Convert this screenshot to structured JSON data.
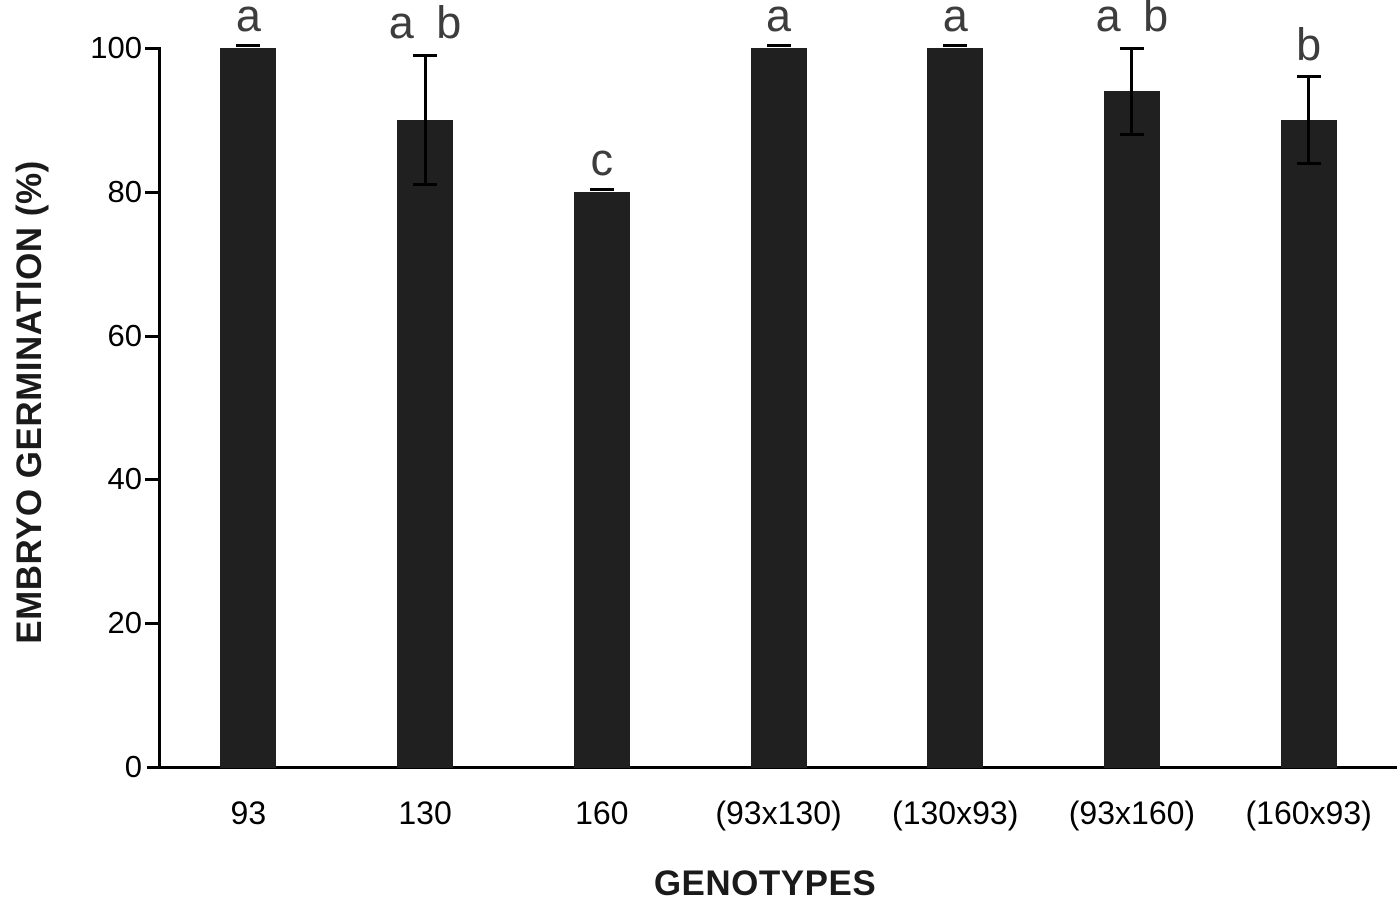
{
  "chart_data": {
    "type": "bar",
    "title": "",
    "xlabel": "GENOTYPES",
    "ylabel": "EMBRYO GERMINATION (%)",
    "ylim": [
      0,
      100
    ],
    "yticks": [
      0,
      20,
      40,
      60,
      80,
      100
    ],
    "grid": false,
    "legend": false,
    "categories": [
      "93",
      "130",
      "160",
      "(93x130)",
      "(130x93)",
      "(93x160)",
      "(160x93)"
    ],
    "series": [
      {
        "name": "Embryo germination %",
        "values": [
          100,
          90,
          80,
          100,
          100,
          94,
          90
        ],
        "errors": [
          0,
          9,
          0,
          0,
          0,
          6,
          6
        ],
        "significance_letters": [
          "a",
          "a b",
          "c",
          "a",
          "a",
          "a b",
          "b"
        ]
      }
    ],
    "colors": {
      "bar": "#202020",
      "significance_letter": "#3d3d3d",
      "axis": "#000000",
      "background": "#ffffff"
    }
  }
}
